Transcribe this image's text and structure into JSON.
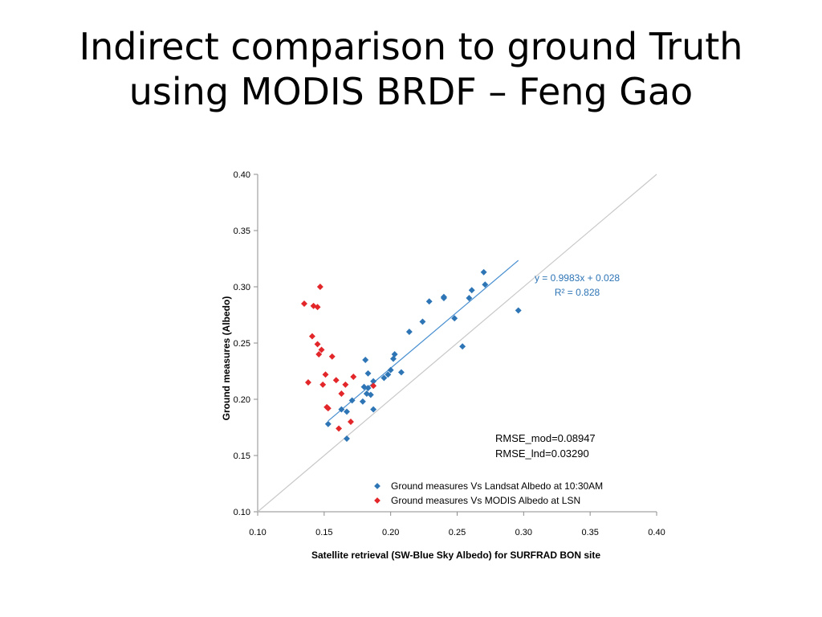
{
  "slide": {
    "title_line1": "Indirect comparison to ground Truth",
    "title_line2": "using MODIS BRDF – Feng Gao"
  },
  "colors": {
    "landsat": "#2e75b6",
    "modis": "#e3262a",
    "trendline": "#4a90d0",
    "identity": "#c8c8c8",
    "axis": "#8c8c8c"
  },
  "chart_data": {
    "type": "scatter",
    "xlabel": "Satellite retrieval (SW-Blue Sky Albedo) for SURFRAD BON site",
    "ylabel": "Ground measures (Albedo)",
    "xlim": [
      0.1,
      0.4
    ],
    "ylim": [
      0.1,
      0.4
    ],
    "xticks": [
      "0.10",
      "0.15",
      "0.20",
      "0.25",
      "0.30",
      "0.35",
      "0.40"
    ],
    "yticks": [
      "0.10",
      "0.15",
      "0.20",
      "0.25",
      "0.30",
      "0.35",
      "0.40"
    ],
    "grid": false,
    "legend_position": "bottom-right",
    "series": [
      {
        "name": "Ground measures Vs Landsat Albedo at 10:30AM",
        "marker": "diamond",
        "points": [
          [
            0.153,
            0.178
          ],
          [
            0.163,
            0.191
          ],
          [
            0.167,
            0.165
          ],
          [
            0.167,
            0.189
          ],
          [
            0.171,
            0.199
          ],
          [
            0.179,
            0.198
          ],
          [
            0.18,
            0.211
          ],
          [
            0.181,
            0.235
          ],
          [
            0.182,
            0.205
          ],
          [
            0.183,
            0.21
          ],
          [
            0.183,
            0.223
          ],
          [
            0.185,
            0.204
          ],
          [
            0.187,
            0.216
          ],
          [
            0.187,
            0.191
          ],
          [
            0.195,
            0.219
          ],
          [
            0.198,
            0.222
          ],
          [
            0.2,
            0.226
          ],
          [
            0.202,
            0.236
          ],
          [
            0.203,
            0.24
          ],
          [
            0.208,
            0.224
          ],
          [
            0.214,
            0.26
          ],
          [
            0.224,
            0.269
          ],
          [
            0.229,
            0.287
          ],
          [
            0.24,
            0.291
          ],
          [
            0.24,
            0.29
          ],
          [
            0.248,
            0.272
          ],
          [
            0.254,
            0.247
          ],
          [
            0.259,
            0.29
          ],
          [
            0.261,
            0.297
          ],
          [
            0.27,
            0.313
          ],
          [
            0.271,
            0.302
          ],
          [
            0.296,
            0.279
          ]
        ]
      },
      {
        "name": "Ground measures Vs MODIS Albedo at LSN",
        "marker": "diamond",
        "points": [
          [
            0.135,
            0.285
          ],
          [
            0.138,
            0.215
          ],
          [
            0.141,
            0.256
          ],
          [
            0.142,
            0.283
          ],
          [
            0.145,
            0.282
          ],
          [
            0.145,
            0.249
          ],
          [
            0.146,
            0.24
          ],
          [
            0.147,
            0.3
          ],
          [
            0.148,
            0.244
          ],
          [
            0.149,
            0.213
          ],
          [
            0.151,
            0.222
          ],
          [
            0.152,
            0.193
          ],
          [
            0.153,
            0.192
          ],
          [
            0.156,
            0.238
          ],
          [
            0.159,
            0.217
          ],
          [
            0.161,
            0.174
          ],
          [
            0.163,
            0.205
          ],
          [
            0.166,
            0.213
          ],
          [
            0.17,
            0.18
          ],
          [
            0.172,
            0.22
          ],
          [
            0.187,
            0.212
          ]
        ]
      }
    ],
    "trendline": {
      "series": "Ground measures Vs Landsat Albedo at 10:30AM",
      "slope": 0.9983,
      "intercept": 0.028,
      "x_range": [
        0.153,
        0.296
      ],
      "equation": "y = 0.9983x + 0.028",
      "r2": "R² = 0.828"
    },
    "reference_line": {
      "type": "1:1",
      "x_range": [
        0.1,
        0.4
      ]
    },
    "annotations": {
      "rmse_mod": "RMSE_mod=0.08947",
      "rmse_lnd": "RMSE_lnd=0.03290"
    }
  }
}
